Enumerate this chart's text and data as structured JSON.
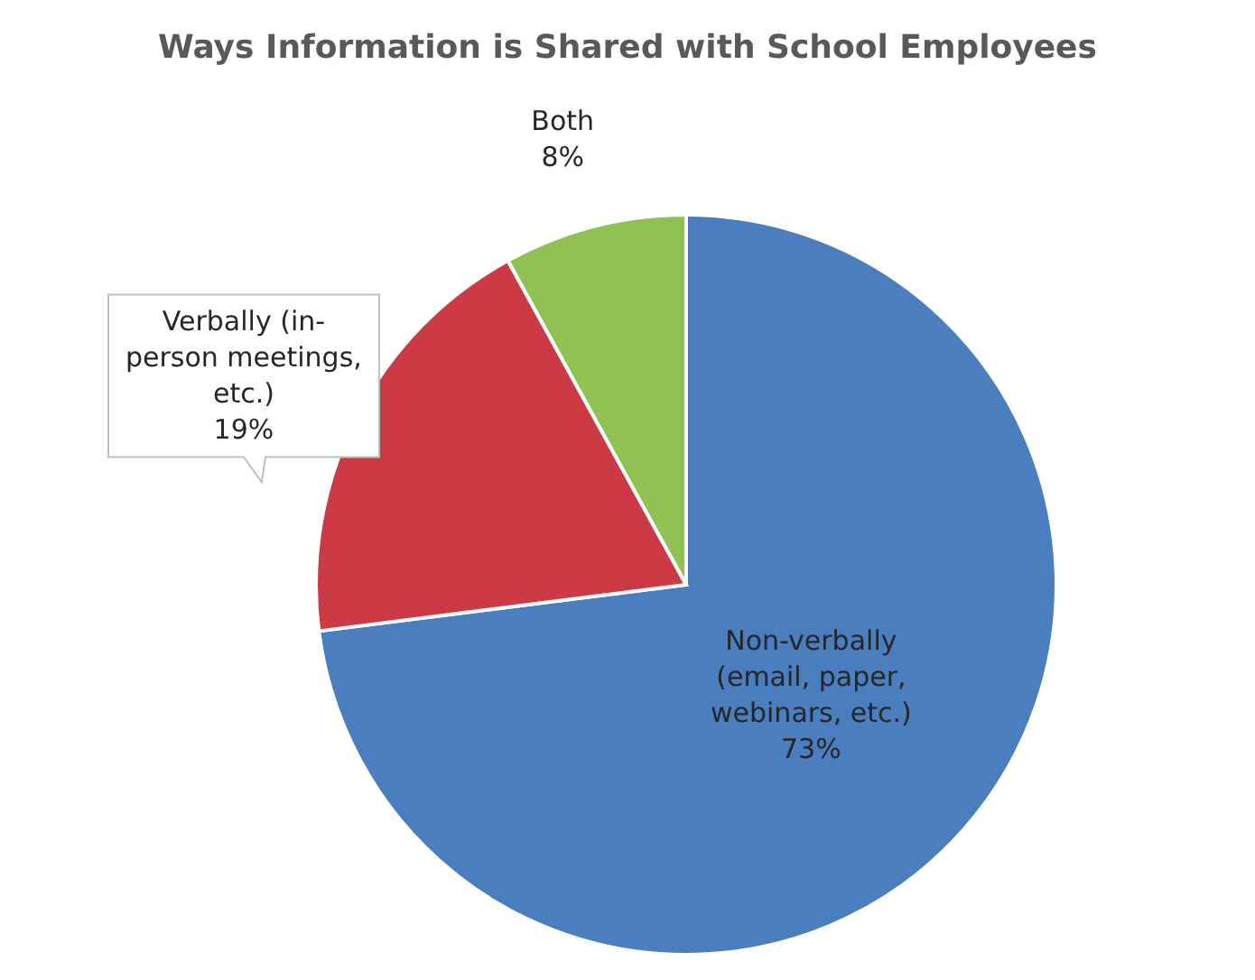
{
  "chart_data": {
    "type": "pie",
    "title": "Ways Information is Shared with School Employees",
    "categories": [
      "Non-verbally (email, paper, webinars, etc.)",
      "Verbally (in-person meetings, etc.)",
      "Both"
    ],
    "values": [
      73,
      19,
      8
    ],
    "colors": [
      "#4a7ebf",
      "#cc3b45",
      "#8fc153"
    ],
    "value_labels": [
      "73%",
      "19%",
      "8%"
    ]
  }
}
